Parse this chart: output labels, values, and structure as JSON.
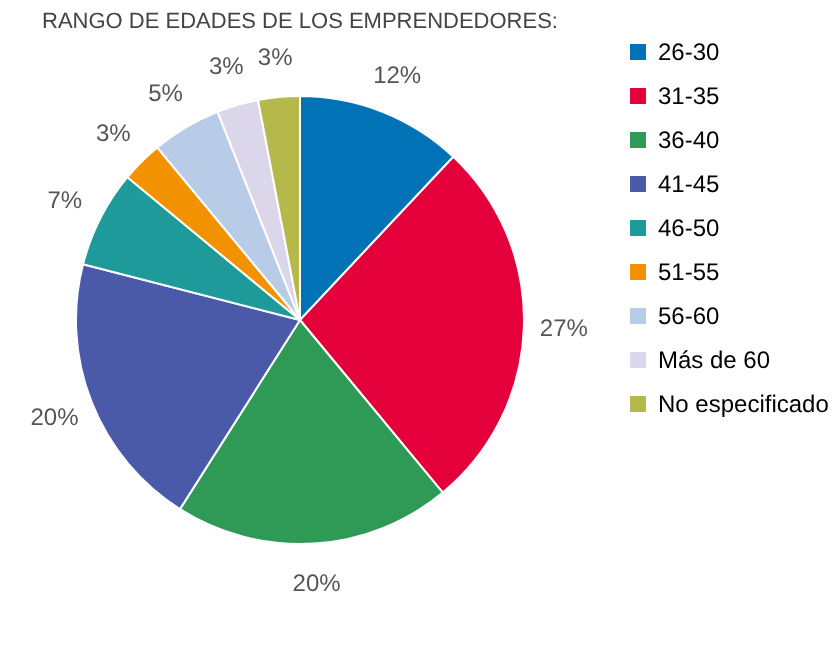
{
  "chart_data": {
    "type": "pie",
    "title": "RANGO DE EDADES DE LOS EMPRENDEDORES:",
    "categories": [
      "26-30",
      "31-35",
      "36-40",
      "41-45",
      "46-50",
      "51-55",
      "56-60",
      "Más de 60",
      "No especificado"
    ],
    "values": [
      12,
      27,
      20,
      20,
      7,
      3,
      5,
      3,
      3
    ],
    "value_labels": [
      "12%",
      "27%",
      "20%",
      "20%",
      "7%",
      "3%",
      "5%",
      "3%",
      "3%"
    ],
    "colors": [
      "#0072b5",
      "#e4003a",
      "#2e9a55",
      "#4a5aa8",
      "#1e9a9a",
      "#f39200",
      "#b8cce8",
      "#dcd6ea",
      "#b5b84a"
    ],
    "legend": "right"
  }
}
